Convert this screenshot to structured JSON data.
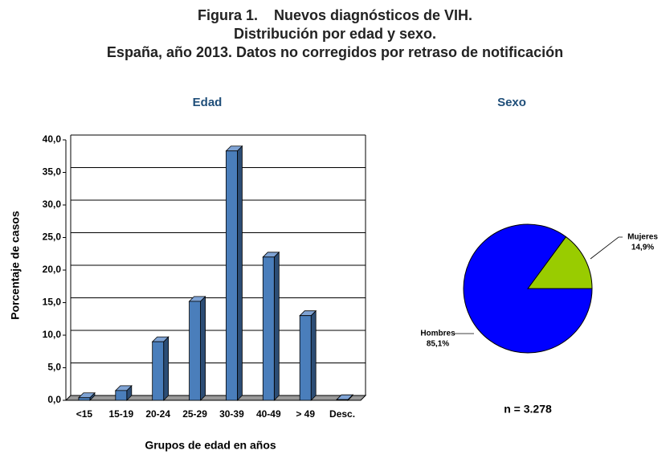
{
  "header": {
    "title": [
      "Figura 1.    Nuevos diagnósticos de VIH.",
      "Distribución por edad y sexo.",
      "España, año 2013. Datos no corregidos por retraso de notificación"
    ]
  },
  "chart_data": [
    {
      "type": "bar",
      "title": "Edad",
      "ylabel": "Porcentaje de casos",
      "xlabel": "Grupos de edad en años",
      "categories": [
        "<15",
        "15-19",
        "20-24",
        "25-29",
        "30-39",
        "40-49",
        "> 49",
        "Desc."
      ],
      "values": [
        0.4,
        1.5,
        9.0,
        15.2,
        38.3,
        22.0,
        13.0,
        0.1
      ],
      "color": "#4a7ebb",
      "ylim": [
        0,
        40
      ],
      "yticks": [
        {
          "value": 0,
          "label": "0,0"
        },
        {
          "value": 5,
          "label": "5,0"
        },
        {
          "value": 10,
          "label": "10,0"
        },
        {
          "value": 15,
          "label": "15,0"
        },
        {
          "value": 20,
          "label": "20,0"
        },
        {
          "value": 25,
          "label": "25,0"
        },
        {
          "value": 30,
          "label": "30,0"
        },
        {
          "value": 35,
          "label": "35,0"
        },
        {
          "value": 40,
          "label": "40,0"
        }
      ],
      "grid": true
    },
    {
      "type": "pie",
      "title": "Sexo",
      "categories": [
        "Hombres",
        "Mujeres"
      ],
      "values": [
        85.1,
        14.9
      ],
      "value_labels": [
        "85,1%",
        "14,9%"
      ],
      "colors": [
        "#0000ff",
        "#99cc00"
      ],
      "annotation": "n = 3.278"
    }
  ]
}
